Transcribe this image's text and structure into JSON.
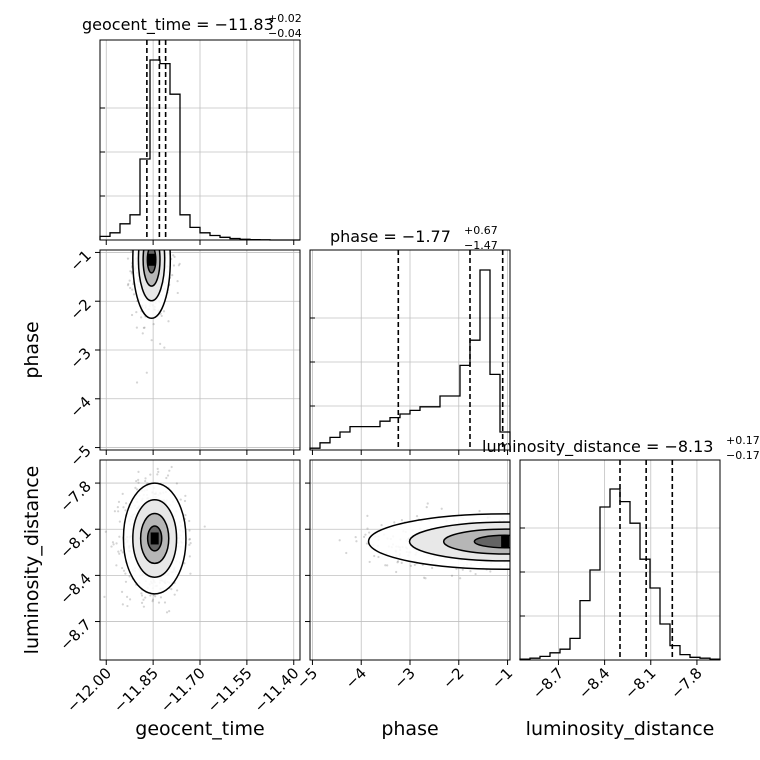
{
  "chart_data": {
    "type": "corner",
    "parameters": [
      {
        "name": "geocent_time",
        "range": [
          -12.02,
          -11.38
        ],
        "ticks": [
          -12.0,
          -11.85,
          -11.7,
          -11.55,
          -11.4
        ],
        "tick_labels": [
          "−12.00",
          "−11.85",
          "−11.70",
          "−11.55",
          "−11.40"
        ],
        "title_main": "geocent_time = −11.83",
        "title_sup": "+0.02",
        "title_sub": "−0.04",
        "quantiles": [
          -11.87,
          -11.83,
          -11.81
        ],
        "hist": [
          0.02,
          0.04,
          0.09,
          0.14,
          0.45,
          1.0,
          0.98,
          0.81,
          0.14,
          0.07,
          0.04,
          0.025,
          0.015,
          0.008,
          0.004,
          0.002,
          0.001,
          0,
          0,
          0
        ]
      },
      {
        "name": "phase",
        "range": [
          -5.05,
          -0.95
        ],
        "ticks": [
          -5,
          -4,
          -3,
          -2,
          -1
        ],
        "tick_labels": [
          "−5",
          "−4",
          "−3",
          "−2",
          "−1"
        ],
        "title_main": "phase = −1.77",
        "title_sup": "+0.67",
        "title_sub": "−1.47",
        "quantiles": [
          -3.24,
          -1.77,
          -1.1
        ],
        "hist": [
          0.01,
          0.04,
          0.07,
          0.1,
          0.13,
          0.13,
          0.13,
          0.16,
          0.18,
          0.2,
          0.22,
          0.24,
          0.24,
          0.3,
          0.3,
          0.47,
          0.61,
          1.0,
          0.42,
          0.1
        ]
      },
      {
        "name": "luminosity_distance",
        "range": [
          -8.95,
          -7.65
        ],
        "ticks": [
          -8.7,
          -8.4,
          -8.1,
          -7.8
        ],
        "tick_labels": [
          "−8.7",
          "−8.4",
          "−8.1",
          "−7.8"
        ],
        "title_main": "luminosity_distance = −8.13",
        "title_sup": "+0.17",
        "title_sub": "−0.17",
        "quantiles": [
          -8.3,
          -8.13,
          -7.96
        ],
        "hist": [
          0.005,
          0.01,
          0.02,
          0.04,
          0.06,
          0.12,
          0.33,
          0.5,
          0.85,
          0.95,
          0.88,
          0.76,
          0.56,
          0.4,
          0.2,
          0.08,
          0.03,
          0.015,
          0.01,
          0.005
        ]
      }
    ],
    "joint": [
      {
        "x": "geocent_time",
        "y": "phase",
        "center": [
          -11.855,
          -1.15
        ],
        "spread": [
          0.03,
          0.6
        ],
        "mode": [
          -11.855,
          -1.15
        ]
      },
      {
        "x": "geocent_time",
        "y": "luminosity_distance",
        "center": [
          -11.845,
          -8.16
        ],
        "spread": [
          0.05,
          0.18
        ],
        "mode": [
          -11.845,
          -8.16
        ]
      },
      {
        "x": "phase",
        "y": "luminosity_distance",
        "center": [
          -1.05,
          -8.18
        ],
        "spread": [
          1.4,
          0.09
        ],
        "mode": [
          -1.05,
          -8.18
        ]
      }
    ],
    "grid": true
  }
}
